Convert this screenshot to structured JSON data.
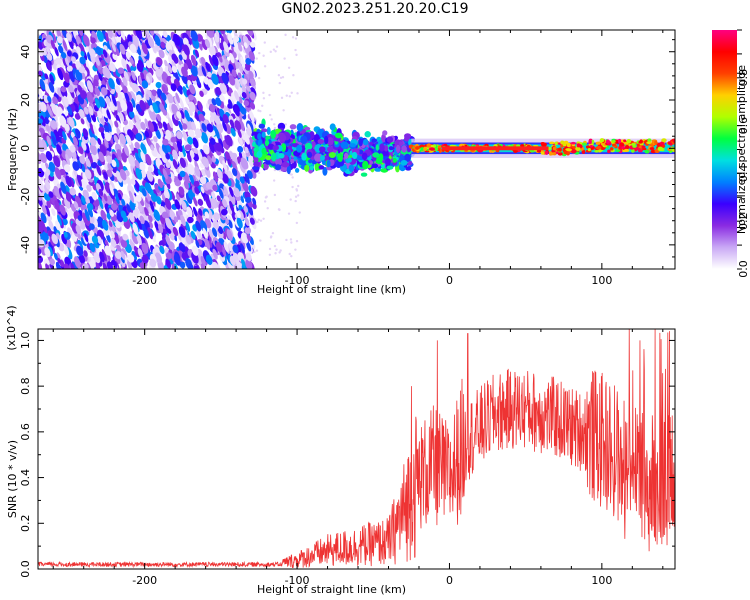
{
  "title": "GN02.2023.251.20.20.C19",
  "chart_data": [
    {
      "type": "heatmap",
      "xlabel": "Height of straight line (km)",
      "ylabel": "Frequency (Hz)",
      "xlim": [
        -270,
        148
      ],
      "ylim": [
        -50,
        49
      ],
      "x_ticks": [
        -200,
        -100,
        0,
        100
      ],
      "y_ticks": [
        -40,
        -20,
        0,
        20,
        40
      ],
      "colorbar": {
        "label": "Normalized spectral amplitude",
        "range": [
          0,
          1
        ],
        "ticks": [
          "0.0",
          "0.2",
          "0.4",
          "0.6",
          "0.8"
        ],
        "colors": [
          "#ffffff",
          "#c9a8f5",
          "#8a2be2",
          "#3a00ff",
          "#0080ff",
          "#00e0e0",
          "#00ff40",
          "#b0ff00",
          "#ffd000",
          "#ff4000",
          "#ff0000",
          "#ff0080"
        ]
      },
      "regions": [
        {
          "x_range": [
            -270,
            -128
          ],
          "freq_range": [
            -50,
            49
          ],
          "amplitude": [
            0.0,
            0.35
          ]
        },
        {
          "x_range": [
            -128,
            -25
          ],
          "freq_range": [
            -17,
            12
          ],
          "amplitude": [
            0.15,
            0.55
          ]
        },
        {
          "x_range": [
            -25,
            148
          ],
          "freq_center": 0,
          "freq_halfwidth": 3,
          "amplitude": [
            0.5,
            1.0
          ]
        }
      ]
    },
    {
      "type": "line",
      "xlabel": "Height of straight line (km)",
      "ylabel": "SNR (10 * v/v)",
      "y_multiplier": "(x10^4)",
      "xlim": [
        -270,
        148
      ],
      "ylim": [
        0,
        1.05
      ],
      "x_ticks": [
        -200,
        -100,
        0,
        100
      ],
      "y_ticks": [
        "0.0",
        "0.2",
        "0.4",
        "0.6",
        "0.8",
        "1.0"
      ],
      "color": "#ee3333",
      "envelope": {
        "x": [
          -270,
          -200,
          -120,
          -100,
          -80,
          -60,
          -40,
          -30,
          -20,
          -10,
          0,
          10,
          20,
          30,
          40,
          50,
          60,
          70,
          80,
          90,
          100,
          110,
          120,
          130,
          140,
          148
        ],
        "y": [
          0.01,
          0.01,
          0.01,
          0.04,
          0.08,
          0.1,
          0.12,
          0.25,
          0.4,
          0.45,
          0.4,
          0.55,
          0.62,
          0.68,
          0.7,
          0.7,
          0.68,
          0.66,
          0.62,
          0.6,
          0.56,
          0.5,
          0.45,
          0.4,
          0.38,
          0.4
        ]
      },
      "peaks": [
        {
          "x": -25,
          "y": 0.8
        },
        {
          "x": -8,
          "y": 1.0
        },
        {
          "x": 12,
          "y": 1.03
        },
        {
          "x": 118,
          "y": 1.05
        },
        {
          "x": 125,
          "y": 1.0
        },
        {
          "x": 135,
          "y": 1.05
        }
      ]
    }
  ]
}
